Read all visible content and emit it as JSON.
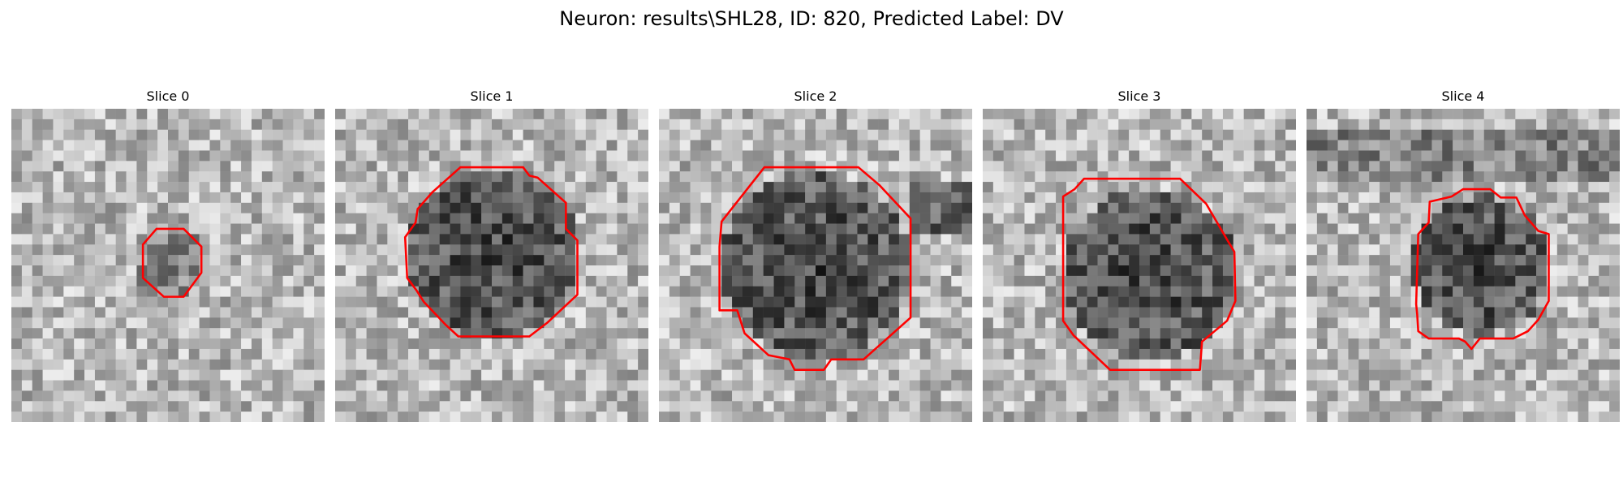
{
  "figure": {
    "title": "Neuron: results\\SHL28, ID: 820, Predicted Label: DV"
  },
  "colors": {
    "contour": "#ff0000"
  },
  "panels": [
    {
      "title": "Slice 0",
      "region_size": "small",
      "darkness": "light"
    },
    {
      "title": "Slice 1",
      "region_size": "large",
      "darkness": "dark"
    },
    {
      "title": "Slice 2",
      "region_size": "large",
      "darkness": "dark"
    },
    {
      "title": "Slice 3",
      "region_size": "large",
      "darkness": "dark"
    },
    {
      "title": "Slice 4",
      "region_size": "medium",
      "darkness": "dark"
    }
  ]
}
